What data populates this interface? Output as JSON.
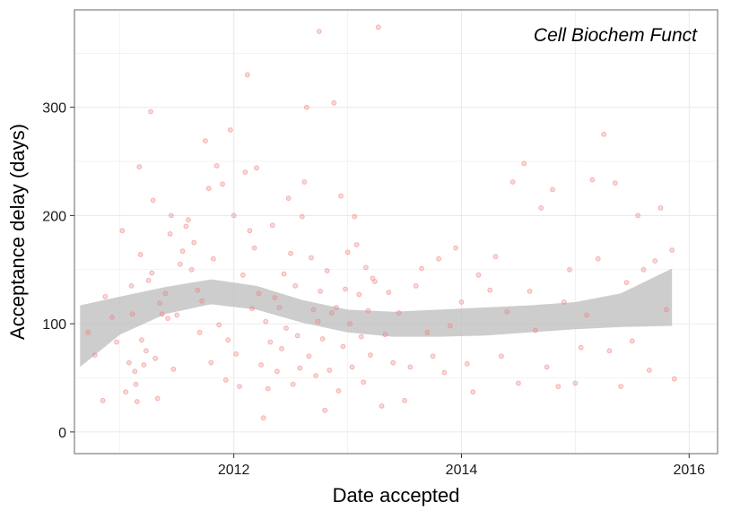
{
  "chart_data": {
    "type": "scatter",
    "annotation": "Cell Biochem Funct",
    "xlabel": "Date accepted",
    "ylabel": "Acceptance delay (days)",
    "xlim": [
      2010.6,
      2016.25
    ],
    "ylim": [
      -20,
      390
    ],
    "xticks": [
      2012,
      2014,
      2016
    ],
    "yticks": [
      0,
      100,
      200,
      300
    ],
    "grid": true,
    "colors": {
      "points": "#f08080",
      "band": "#c0c0c0",
      "grid": "#ebebeb",
      "border": "#7f7f7f"
    },
    "smooth": {
      "x": [
        2010.65,
        2011.0,
        2011.4,
        2011.8,
        2012.2,
        2012.6,
        2013.0,
        2013.4,
        2013.8,
        2014.2,
        2014.6,
        2015.0,
        2015.4,
        2015.85
      ],
      "upper": [
        117,
        125,
        134,
        141,
        135,
        122,
        113,
        111,
        113,
        115,
        117,
        120,
        128,
        151
      ],
      "lower": [
        60,
        90,
        109,
        118,
        113,
        101,
        92,
        88,
        88,
        89,
        92,
        95,
        97,
        98
      ]
    },
    "points": [
      [
        2010.72,
        92
      ],
      [
        2010.78,
        71
      ],
      [
        2010.85,
        29
      ],
      [
        2010.87,
        125
      ],
      [
        2010.93,
        106
      ],
      [
        2010.97,
        83
      ],
      [
        2011.02,
        186
      ],
      [
        2011.05,
        37
      ],
      [
        2011.08,
        64
      ],
      [
        2011.1,
        135
      ],
      [
        2011.11,
        109
      ],
      [
        2011.13,
        56
      ],
      [
        2011.14,
        44
      ],
      [
        2011.15,
        28
      ],
      [
        2011.17,
        245
      ],
      [
        2011.18,
        164
      ],
      [
        2011.19,
        85
      ],
      [
        2011.21,
        62
      ],
      [
        2011.23,
        75
      ],
      [
        2011.25,
        140
      ],
      [
        2011.27,
        296
      ],
      [
        2011.28,
        147
      ],
      [
        2011.29,
        214
      ],
      [
        2011.31,
        68
      ],
      [
        2011.33,
        31
      ],
      [
        2011.35,
        119
      ],
      [
        2011.37,
        109
      ],
      [
        2011.4,
        128
      ],
      [
        2011.42,
        105
      ],
      [
        2011.44,
        183
      ],
      [
        2011.45,
        200
      ],
      [
        2011.47,
        58
      ],
      [
        2011.5,
        108
      ],
      [
        2011.53,
        155
      ],
      [
        2011.55,
        167
      ],
      [
        2011.58,
        190
      ],
      [
        2011.6,
        196
      ],
      [
        2011.63,
        150
      ],
      [
        2011.65,
        175
      ],
      [
        2011.68,
        131
      ],
      [
        2011.7,
        92
      ],
      [
        2011.72,
        121
      ],
      [
        2011.75,
        269
      ],
      [
        2011.78,
        225
      ],
      [
        2011.8,
        64
      ],
      [
        2011.82,
        160
      ],
      [
        2011.85,
        246
      ],
      [
        2011.87,
        99
      ],
      [
        2011.9,
        229
      ],
      [
        2011.93,
        48
      ],
      [
        2011.95,
        85
      ],
      [
        2011.97,
        279
      ],
      [
        2012.0,
        200
      ],
      [
        2012.02,
        72
      ],
      [
        2012.05,
        42
      ],
      [
        2012.08,
        145
      ],
      [
        2012.1,
        240
      ],
      [
        2012.12,
        330
      ],
      [
        2012.14,
        186
      ],
      [
        2012.16,
        114
      ],
      [
        2012.18,
        170
      ],
      [
        2012.2,
        244
      ],
      [
        2012.22,
        128
      ],
      [
        2012.24,
        62
      ],
      [
        2012.26,
        13
      ],
      [
        2012.28,
        102
      ],
      [
        2012.3,
        40
      ],
      [
        2012.32,
        83
      ],
      [
        2012.34,
        191
      ],
      [
        2012.36,
        124
      ],
      [
        2012.38,
        56
      ],
      [
        2012.4,
        115
      ],
      [
        2012.42,
        77
      ],
      [
        2012.44,
        146
      ],
      [
        2012.46,
        96
      ],
      [
        2012.48,
        216
      ],
      [
        2012.5,
        165
      ],
      [
        2012.52,
        44
      ],
      [
        2012.54,
        135
      ],
      [
        2012.56,
        89
      ],
      [
        2012.58,
        59
      ],
      [
        2012.6,
        199
      ],
      [
        2012.62,
        231
      ],
      [
        2012.64,
        300
      ],
      [
        2012.66,
        70
      ],
      [
        2012.68,
        161
      ],
      [
        2012.7,
        113
      ],
      [
        2012.72,
        52
      ],
      [
        2012.74,
        102
      ],
      [
        2012.75,
        370
      ],
      [
        2012.76,
        130
      ],
      [
        2012.78,
        86
      ],
      [
        2012.8,
        20
      ],
      [
        2012.82,
        149
      ],
      [
        2012.84,
        57
      ],
      [
        2012.86,
        110
      ],
      [
        2012.88,
        304
      ],
      [
        2012.9,
        115
      ],
      [
        2012.92,
        38
      ],
      [
        2012.94,
        218
      ],
      [
        2012.96,
        79
      ],
      [
        2012.98,
        132
      ],
      [
        2013.0,
        166
      ],
      [
        2013.02,
        100
      ],
      [
        2013.04,
        60
      ],
      [
        2013.06,
        199
      ],
      [
        2013.08,
        173
      ],
      [
        2013.1,
        127
      ],
      [
        2013.12,
        88
      ],
      [
        2013.14,
        46
      ],
      [
        2013.16,
        152
      ],
      [
        2013.18,
        112
      ],
      [
        2013.2,
        71
      ],
      [
        2013.22,
        142
      ],
      [
        2013.24,
        139
      ],
      [
        2013.27,
        374
      ],
      [
        2013.3,
        24
      ],
      [
        2013.33,
        90
      ],
      [
        2013.36,
        129
      ],
      [
        2013.4,
        64
      ],
      [
        2013.45,
        110
      ],
      [
        2013.5,
        29
      ],
      [
        2013.55,
        60
      ],
      [
        2013.6,
        135
      ],
      [
        2013.65,
        151
      ],
      [
        2013.7,
        92
      ],
      [
        2013.75,
        70
      ],
      [
        2013.8,
        160
      ],
      [
        2013.85,
        55
      ],
      [
        2013.9,
        98
      ],
      [
        2013.95,
        170
      ],
      [
        2014.0,
        120
      ],
      [
        2014.05,
        63
      ],
      [
        2014.1,
        37
      ],
      [
        2014.15,
        145
      ],
      [
        2014.25,
        131
      ],
      [
        2014.3,
        162
      ],
      [
        2014.35,
        70
      ],
      [
        2014.4,
        111
      ],
      [
        2014.45,
        231
      ],
      [
        2014.5,
        45
      ],
      [
        2014.55,
        248
      ],
      [
        2014.6,
        130
      ],
      [
        2014.65,
        94
      ],
      [
        2014.7,
        207
      ],
      [
        2014.75,
        60
      ],
      [
        2014.8,
        224
      ],
      [
        2014.85,
        42
      ],
      [
        2014.9,
        120
      ],
      [
        2014.95,
        150
      ],
      [
        2015.0,
        45
      ],
      [
        2015.05,
        78
      ],
      [
        2015.1,
        108
      ],
      [
        2015.15,
        233
      ],
      [
        2015.2,
        160
      ],
      [
        2015.25,
        275
      ],
      [
        2015.3,
        75
      ],
      [
        2015.35,
        230
      ],
      [
        2015.4,
        42
      ],
      [
        2015.45,
        138
      ],
      [
        2015.5,
        84
      ],
      [
        2015.55,
        200
      ],
      [
        2015.6,
        150
      ],
      [
        2015.65,
        57
      ],
      [
        2015.7,
        158
      ],
      [
        2015.75,
        207
      ],
      [
        2015.8,
        113
      ],
      [
        2015.85,
        168
      ],
      [
        2015.87,
        49
      ]
    ]
  }
}
